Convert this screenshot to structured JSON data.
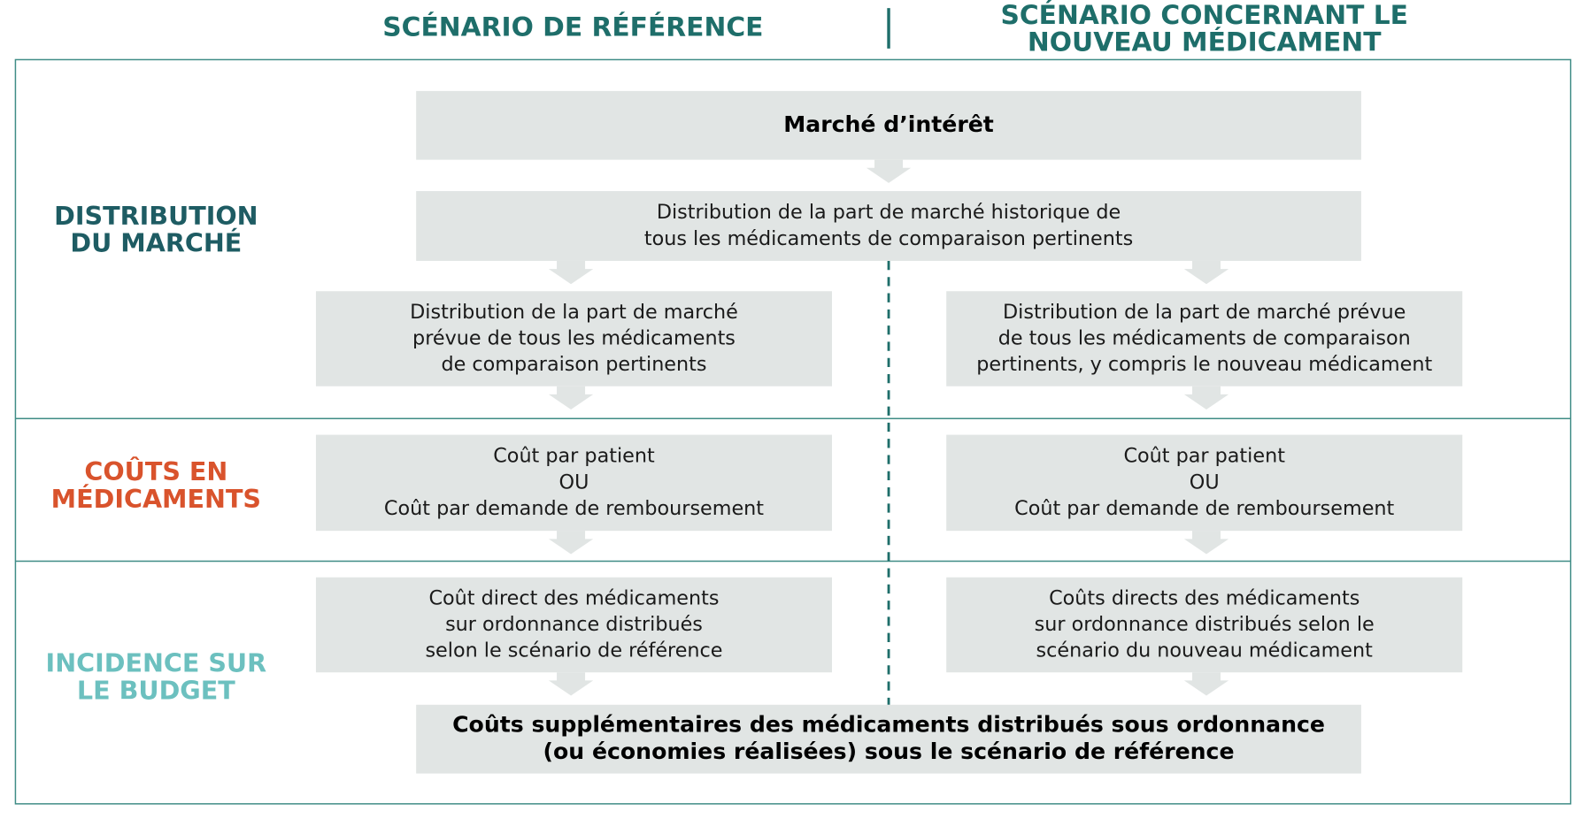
{
  "header": {
    "left": [
      "SCÉNARIO DE RÉFÉRENCE"
    ],
    "right": [
      "SCÉNARIO CONCERNANT LE",
      "NOUVEAU MÉDICAMENT"
    ]
  },
  "sections": [
    {
      "lines": [
        "DISTRIBUTION",
        "DU MARCHÉ"
      ]
    },
    {
      "lines": [
        "COÛTS EN",
        "MÉDICAMENTS"
      ]
    },
    {
      "lines": [
        "INCIDENCE SUR",
        "LE BUDGET"
      ]
    }
  ],
  "boxes": [
    {
      "lines": [
        "Marché d’intérêt"
      ]
    },
    {
      "lines": [
        "Distribution de la part de marché historique de",
        "tous les médicaments de comparaison pertinents"
      ]
    },
    {
      "lines": [
        "Distribution de la part de marché",
        "prévue de tous les médicaments",
        "de comparaison pertinents"
      ]
    },
    {
      "lines": [
        "Distribution de la part de marché prévue",
        "de tous les médicaments de comparaison",
        "pertinents, y compris le nouveau médicament"
      ]
    },
    {
      "lines": [
        "Coût par patient",
        "OU",
        "Coût par demande de remboursement"
      ]
    },
    {
      "lines": [
        "Coût par patient",
        "OU",
        "Coût par demande de remboursement"
      ]
    },
    {
      "lines": [
        "Coût direct des médicaments",
        "sur ordonnance distribués",
        "selon le scénario de référence"
      ]
    },
    {
      "lines": [
        "Coûts directs des médicaments",
        "sur ordonnance distribués selon le",
        "scénario du nouveau médicament"
      ]
    },
    {
      "lines": [
        "Coûts supplémentaires des médicaments distribués sous ordonnance",
        "(ou économies réalisées) sous le scénario de référence"
      ]
    }
  ]
}
